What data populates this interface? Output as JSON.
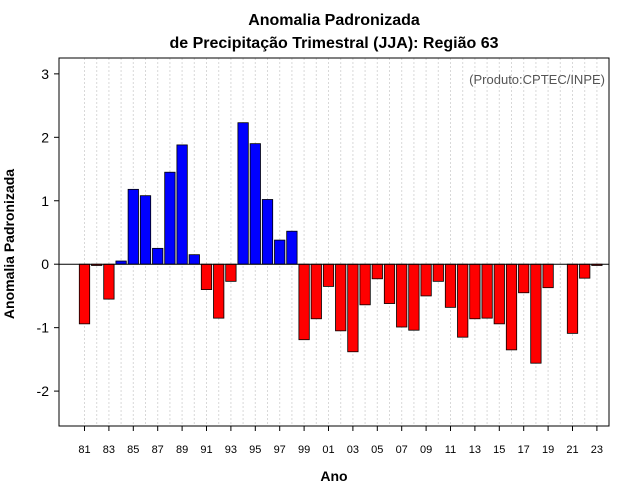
{
  "chart_data": {
    "type": "bar",
    "title_line1": "Anomalia Padronizada",
    "title_line2": "de Precipitação Trimestral (JJA): Região 63",
    "credit": "(Produto:CPTEC/INPE)",
    "xlabel": "Ano",
    "ylabel": "Anomalia Padronizada",
    "ylim": [
      -2.55,
      3.25
    ],
    "yticks": [
      "-2",
      "-1",
      "0",
      "1",
      "2",
      "3"
    ],
    "xtick_labels": [
      "81",
      "83",
      "85",
      "87",
      "89",
      "91",
      "93",
      "95",
      "97",
      "99",
      "01",
      "03",
      "05",
      "07",
      "09",
      "11",
      "13",
      "15",
      "17",
      "19",
      "21",
      "23"
    ],
    "years": [
      1981,
      1982,
      1983,
      1984,
      1985,
      1986,
      1987,
      1988,
      1989,
      1990,
      1991,
      1992,
      1993,
      1994,
      1995,
      1996,
      1997,
      1998,
      1999,
      2000,
      2001,
      2002,
      2003,
      2004,
      2005,
      2006,
      2007,
      2008,
      2009,
      2010,
      2011,
      2012,
      2013,
      2014,
      2015,
      2016,
      2017,
      2018,
      2019,
      2020,
      2021,
      2022,
      2023
    ],
    "values": [
      -0.94,
      -0.02,
      -0.55,
      0.05,
      1.18,
      1.08,
      0.25,
      1.45,
      1.88,
      0.15,
      -0.4,
      -0.85,
      -0.27,
      2.23,
      1.9,
      1.02,
      0.38,
      0.52,
      -1.19,
      -0.86,
      -0.35,
      -1.05,
      -1.38,
      -0.64,
      -0.23,
      -0.62,
      -0.99,
      -1.04,
      -0.5,
      -0.27,
      -0.68,
      -1.15,
      -0.86,
      -0.85,
      -0.94,
      -1.35,
      -0.45,
      -1.56,
      -0.37,
      0.0,
      -1.09,
      -0.22,
      -0.02
    ],
    "grid": true,
    "colors": {
      "positive": "#0000ff",
      "negative": "#ff0000",
      "grid": "#d8d8d8",
      "credit": "#555555"
    }
  }
}
